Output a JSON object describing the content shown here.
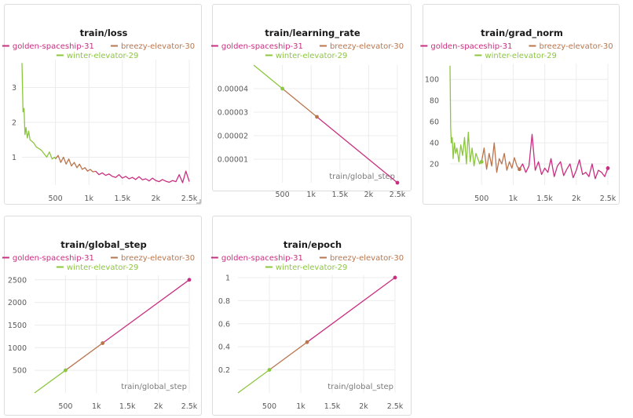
{
  "colors": {
    "golden": "#c92f80",
    "breezy": "#b9764e",
    "winter": "#8cc63f"
  },
  "legend": [
    {
      "name": "golden-spaceship-31",
      "color": "#c92f80"
    },
    {
      "name": "breezy-elevator-30",
      "color": "#b9764e"
    },
    {
      "name": "winter-elevator-29",
      "color": "#8cc63f"
    }
  ],
  "chart_data": [
    {
      "id": "loss",
      "type": "line",
      "title": "train/loss",
      "xlabel": "",
      "ylabel": "",
      "xlim": [
        0,
        2500
      ],
      "ylim": [
        0.2,
        3.8
      ],
      "xticks": [
        500,
        1000,
        1500,
        2000,
        2500
      ],
      "xtick_labels": [
        "500",
        "1k",
        "1.5k",
        "2k",
        "2.5k"
      ],
      "yticks": [
        1,
        2,
        3
      ],
      "ytick_labels": [
        "1",
        "2",
        "3"
      ],
      "series": [
        {
          "name": "winter-elevator-29",
          "color": "#8cc63f",
          "x": [
            0,
            15,
            30,
            45,
            60,
            80,
            100,
            120,
            150,
            180,
            210,
            250,
            290,
            330,
            370,
            410,
            450,
            490,
            500
          ],
          "y": [
            3.7,
            2.3,
            2.4,
            1.65,
            1.85,
            1.55,
            1.75,
            1.5,
            1.45,
            1.4,
            1.3,
            1.25,
            1.2,
            1.1,
            1.0,
            1.15,
            0.95,
            1.0,
            0.95
          ]
        },
        {
          "name": "breezy-elevator-30",
          "color": "#b9764e",
          "x": [
            500,
            540,
            580,
            620,
            660,
            700,
            740,
            780,
            820,
            860,
            900,
            940,
            980,
            1020,
            1060,
            1100
          ],
          "y": [
            0.95,
            1.05,
            0.85,
            1.0,
            0.8,
            0.95,
            0.75,
            0.85,
            0.7,
            0.8,
            0.65,
            0.7,
            0.6,
            0.65,
            0.58,
            0.6
          ]
        },
        {
          "name": "golden-spaceship-31",
          "color": "#c92f80",
          "x": [
            1100,
            1150,
            1200,
            1250,
            1300,
            1350,
            1400,
            1450,
            1500,
            1550,
            1600,
            1650,
            1700,
            1750,
            1800,
            1850,
            1900,
            1950,
            2000,
            2050,
            2100,
            2150,
            2200,
            2250,
            2300,
            2350,
            2400,
            2450,
            2500
          ],
          "y": [
            0.6,
            0.5,
            0.55,
            0.48,
            0.52,
            0.45,
            0.42,
            0.5,
            0.4,
            0.45,
            0.38,
            0.42,
            0.36,
            0.44,
            0.35,
            0.38,
            0.32,
            0.4,
            0.33,
            0.3,
            0.36,
            0.31,
            0.28,
            0.33,
            0.3,
            0.5,
            0.27,
            0.6,
            0.3
          ]
        }
      ]
    },
    {
      "id": "lr",
      "type": "line",
      "title": "train/learning_rate",
      "xlabel": "train/global_step",
      "ylabel": "",
      "xlim": [
        0,
        2500
      ],
      "ylim": [
        0,
        5e-05
      ],
      "xticks": [
        500,
        1000,
        1500,
        2000,
        2500
      ],
      "xtick_labels": [
        "500",
        "1k",
        "1.5k",
        "2k",
        "2.5k"
      ],
      "yticks": [
        1e-05,
        2e-05,
        3e-05,
        4e-05
      ],
      "ytick_labels": [
        "0.00001",
        "0.00002",
        "0.00003",
        "0.00004"
      ],
      "series": [
        {
          "name": "winter-elevator-29",
          "color": "#8cc63f",
          "x": [
            0,
            500
          ],
          "y": [
            5e-05,
            4e-05
          ]
        },
        {
          "name": "breezy-elevator-30",
          "color": "#b9764e",
          "x": [
            500,
            1100
          ],
          "y": [
            4e-05,
            2.8e-05
          ]
        },
        {
          "name": "golden-spaceship-31",
          "color": "#c92f80",
          "x": [
            1100,
            2500
          ],
          "y": [
            2.8e-05,
            0.0
          ]
        }
      ]
    },
    {
      "id": "grad",
      "type": "line",
      "title": "train/grad_norm",
      "xlabel": "",
      "ylabel": "",
      "xlim": [
        0,
        2500
      ],
      "ylim": [
        0,
        115
      ],
      "xticks": [
        500,
        1000,
        1500,
        2000,
        2500
      ],
      "xtick_labels": [
        "500",
        "1k",
        "1.5k",
        "2k",
        "2.5k"
      ],
      "yticks": [
        20,
        40,
        60,
        80,
        100
      ],
      "ytick_labels": [
        "20",
        "40",
        "60",
        "80",
        "100"
      ],
      "series": [
        {
          "name": "winter-elevator-29",
          "color": "#8cc63f",
          "x": [
            0,
            10,
            20,
            35,
            50,
            70,
            90,
            110,
            140,
            170,
            200,
            230,
            260,
            290,
            320,
            350,
            380,
            410,
            440,
            470,
            500
          ],
          "y": [
            113,
            55,
            40,
            45,
            25,
            40,
            30,
            35,
            22,
            38,
            28,
            45,
            20,
            50,
            22,
            35,
            18,
            30,
            25,
            20,
            22
          ]
        },
        {
          "name": "breezy-elevator-30",
          "color": "#b9764e",
          "x": [
            500,
            540,
            580,
            620,
            660,
            700,
            740,
            780,
            820,
            860,
            900,
            940,
            980,
            1020,
            1060,
            1100
          ],
          "y": [
            22,
            35,
            15,
            30,
            18,
            40,
            12,
            25,
            20,
            30,
            14,
            22,
            16,
            26,
            18,
            15
          ]
        },
        {
          "name": "golden-spaceship-31",
          "color": "#c92f80",
          "x": [
            1100,
            1150,
            1200,
            1250,
            1300,
            1350,
            1400,
            1450,
            1500,
            1550,
            1600,
            1650,
            1700,
            1750,
            1800,
            1850,
            1900,
            1950,
            2000,
            2050,
            2100,
            2150,
            2200,
            2250,
            2300,
            2350,
            2400,
            2450,
            2500
          ],
          "y": [
            15,
            20,
            12,
            18,
            48,
            14,
            22,
            10,
            16,
            12,
            25,
            8,
            18,
            22,
            9,
            15,
            20,
            7,
            14,
            24,
            10,
            12,
            8,
            20,
            6,
            14,
            12,
            8,
            16
          ]
        }
      ]
    },
    {
      "id": "gstep",
      "type": "line",
      "title": "train/global_step",
      "xlabel": "train/global_step",
      "ylabel": "",
      "xlim": [
        0,
        2500
      ],
      "ylim": [
        0,
        2600
      ],
      "xticks": [
        500,
        1000,
        1500,
        2000,
        2500
      ],
      "xtick_labels": [
        "500",
        "1k",
        "1.5k",
        "2k",
        "2.5k"
      ],
      "yticks": [
        500,
        1000,
        1500,
        2000,
        2500
      ],
      "ytick_labels": [
        "500",
        "1000",
        "1500",
        "2000",
        "2500"
      ],
      "series": [
        {
          "name": "winter-elevator-29",
          "color": "#8cc63f",
          "x": [
            0,
            500
          ],
          "y": [
            0,
            500
          ]
        },
        {
          "name": "breezy-elevator-30",
          "color": "#b9764e",
          "x": [
            500,
            1100
          ],
          "y": [
            500,
            1100
          ]
        },
        {
          "name": "golden-spaceship-31",
          "color": "#c92f80",
          "x": [
            1100,
            2500
          ],
          "y": [
            1100,
            2500
          ]
        }
      ]
    },
    {
      "id": "epoch",
      "type": "line",
      "title": "train/epoch",
      "xlabel": "train/global_step",
      "ylabel": "",
      "xlim": [
        0,
        2500
      ],
      "ylim": [
        0,
        1.02
      ],
      "xticks": [
        500,
        1000,
        1500,
        2000,
        2500
      ],
      "xtick_labels": [
        "500",
        "1k",
        "1.5k",
        "2k",
        "2.5k"
      ],
      "yticks": [
        0.2,
        0.4,
        0.6,
        0.8,
        1
      ],
      "ytick_labels": [
        "0.2",
        "0.4",
        "0.6",
        "0.8",
        "1"
      ],
      "series": [
        {
          "name": "winter-elevator-29",
          "color": "#8cc63f",
          "x": [
            0,
            500
          ],
          "y": [
            0,
            0.2
          ]
        },
        {
          "name": "breezy-elevator-30",
          "color": "#b9764e",
          "x": [
            500,
            1100
          ],
          "y": [
            0.2,
            0.44
          ]
        },
        {
          "name": "golden-spaceship-31",
          "color": "#c92f80",
          "x": [
            1100,
            2500
          ],
          "y": [
            0.44,
            1.0
          ]
        }
      ]
    }
  ]
}
